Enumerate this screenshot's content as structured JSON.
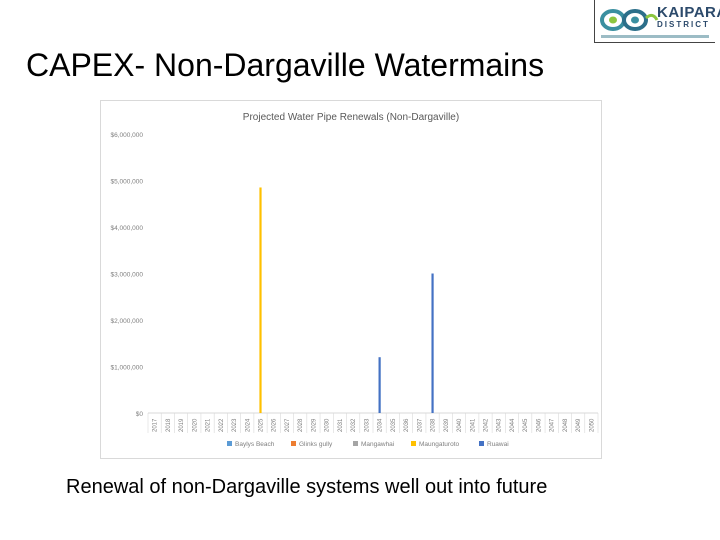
{
  "slide": {
    "title": "CAPEX- Non-Dargaville Watermains",
    "caption": "Renewal of non-Dargaville systems well out into future"
  },
  "logo": {
    "name": "KAIPARA",
    "subtitle": "DISTRICT",
    "icon": "kaipara-swirl-logo-icon",
    "colors": {
      "teal": "#3a8fa0",
      "green": "#8cc63f",
      "navy": "#2c4a6b"
    }
  },
  "chart_data": {
    "type": "bar",
    "title": "Projected Water Pipe Renewals (Non-Dargaville)",
    "xlabel": "",
    "ylabel": "",
    "ylim": [
      0,
      6000000
    ],
    "yticks": [
      "$0",
      "$1,000,000",
      "$2,000,000",
      "$3,000,000",
      "$4,000,000",
      "$5,000,000",
      "$6,000,000"
    ],
    "ytick_values": [
      0,
      1000000,
      2000000,
      3000000,
      4000000,
      5000000,
      6000000
    ],
    "grid": false,
    "legend_position": "bottom",
    "categories": [
      "2017",
      "2018",
      "2019",
      "2020",
      "2021",
      "2022",
      "2023",
      "2024",
      "2025",
      "2026",
      "2027",
      "2028",
      "2029",
      "2030",
      "2031",
      "2032",
      "2033",
      "2034",
      "2035",
      "2036",
      "2037",
      "2038",
      "2039",
      "2040",
      "2041",
      "2042",
      "2043",
      "2044",
      "2045",
      "2046",
      "2047",
      "2048",
      "2049",
      "2050"
    ],
    "series": [
      {
        "name": "Baylys Beach",
        "color": "#5b9bd5",
        "values": {}
      },
      {
        "name": "Glinks gully",
        "color": "#ed7d31",
        "values": {}
      },
      {
        "name": "Mangawhai",
        "color": "#a5a5a5",
        "values": {}
      },
      {
        "name": "Maungaturoto",
        "color": "#ffc000",
        "values": {
          "2025": 4850000
        }
      },
      {
        "name": "Ruawai",
        "color": "#4472c4",
        "values": {
          "2034": 1200000,
          "2038": 3000000
        }
      }
    ]
  }
}
